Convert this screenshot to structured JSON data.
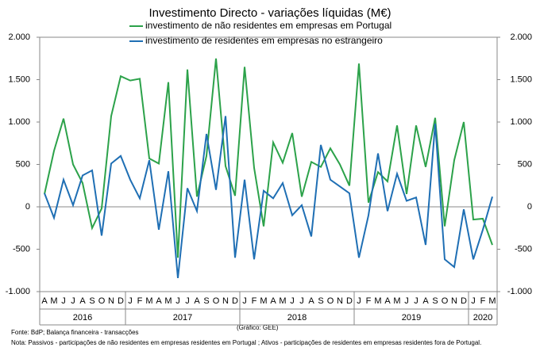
{
  "chart_data": {
    "type": "line",
    "title": "Investimento Directo - variações líquidas (M€)",
    "groups": [
      {
        "label": "2016",
        "categories": [
          "A",
          "M",
          "J",
          "J",
          "A",
          "S",
          "O",
          "N",
          "D"
        ]
      },
      {
        "label": "2017",
        "categories": [
          "J",
          "F",
          "M",
          "A",
          "M",
          "J",
          "J",
          "A",
          "S",
          "O",
          "N",
          "D"
        ]
      },
      {
        "label": "2018",
        "categories": [
          "J",
          "F",
          "M",
          "A",
          "M",
          "J",
          "J",
          "A",
          "S",
          "O",
          "N",
          "D"
        ]
      },
      {
        "label": "2019",
        "categories": [
          "J",
          "F",
          "M",
          "A",
          "M",
          "J",
          "J",
          "A",
          "S",
          "O",
          "N",
          "D"
        ]
      },
      {
        "label": "2020",
        "categories": [
          "J",
          "F",
          "M"
        ]
      }
    ],
    "series": [
      {
        "name": "investimento de não residentes em empresas em Portugal",
        "color": "#2ca24a",
        "values": [
          150,
          660,
          1040,
          500,
          280,
          -250,
          -20,
          1070,
          1540,
          1490,
          1510,
          570,
          510,
          1470,
          -600,
          1620,
          120,
          600,
          1750,
          480,
          130,
          1650,
          460,
          -230,
          760,
          520,
          870,
          120,
          530,
          470,
          690,
          500,
          250,
          1690,
          50,
          410,
          300,
          960,
          150,
          960,
          470,
          1050,
          -230,
          550,
          1000,
          -150,
          -140,
          -450
        ]
      },
      {
        "name": "investimento de residentes em empresas no estrangeiro",
        "color": "#1f6fb4",
        "values": [
          160,
          -130,
          320,
          20,
          370,
          430,
          -340,
          510,
          600,
          320,
          100,
          550,
          -270,
          420,
          -840,
          220,
          -50,
          860,
          200,
          1070,
          -600,
          320,
          -620,
          190,
          100,
          280,
          -100,
          20,
          -350,
          730,
          320,
          240,
          160,
          -600,
          -100,
          630,
          -50,
          390,
          70,
          110,
          -450,
          980,
          -620,
          -710,
          -30,
          -620,
          -270,
          120
        ]
      }
    ],
    "ylim": [
      -1000,
      2000
    ],
    "yticks": [
      {
        "value": 2000,
        "label": "2.000"
      },
      {
        "value": 1500,
        "label": "1.500"
      },
      {
        "value": 1000,
        "label": "1.000"
      },
      500,
      0,
      -500,
      {
        "value": -1000,
        "label": "-1.000"
      }
    ],
    "source": "Fonte: BdP; Balança financeira - transacções",
    "credit": "(Gráfico: GEE)",
    "note": "Nota: Passivos - participações de não residentes em empresas residentes em Portugal ; Ativos - participações de residentes em empresas residentes fora de Portugal."
  }
}
